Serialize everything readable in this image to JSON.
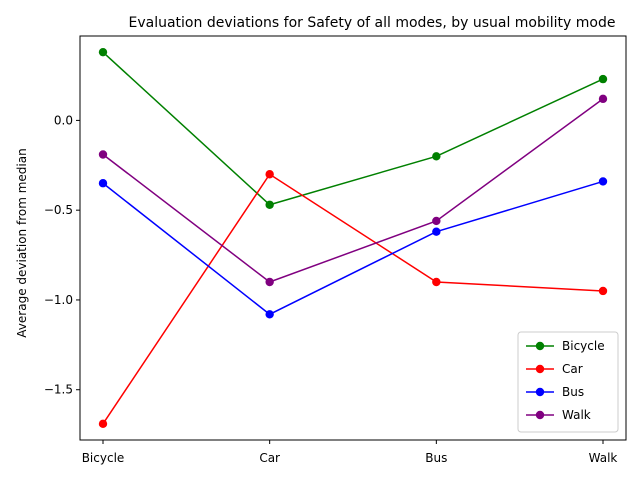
{
  "chart_data": {
    "type": "line",
    "title": "Evaluation deviations for Safety of all modes, by usual mobility mode",
    "xlabel": "",
    "ylabel": "Average deviation from median",
    "categories": [
      "Bicycle",
      "Car",
      "Bus",
      "Walk"
    ],
    "ylim": [
      -1.78,
      0.47
    ],
    "yticks": [
      -1.5,
      -1.0,
      -0.5,
      0.0
    ],
    "ytick_labels": [
      "−1.5",
      "−1.0",
      "−0.5",
      "0.0"
    ],
    "legend_position": "lower-right",
    "series": [
      {
        "name": "Bicycle",
        "color": "#008000",
        "values": [
          0.38,
          -0.47,
          -0.2,
          0.23
        ]
      },
      {
        "name": "Car",
        "color": "#ff0000",
        "values": [
          -1.69,
          -0.3,
          -0.9,
          -0.95
        ]
      },
      {
        "name": "Bus",
        "color": "#0000ff",
        "values": [
          -0.35,
          -1.08,
          -0.62,
          -0.34
        ]
      },
      {
        "name": "Walk",
        "color": "#800080",
        "values": [
          -0.19,
          -0.9,
          -0.56,
          0.12
        ]
      }
    ]
  }
}
